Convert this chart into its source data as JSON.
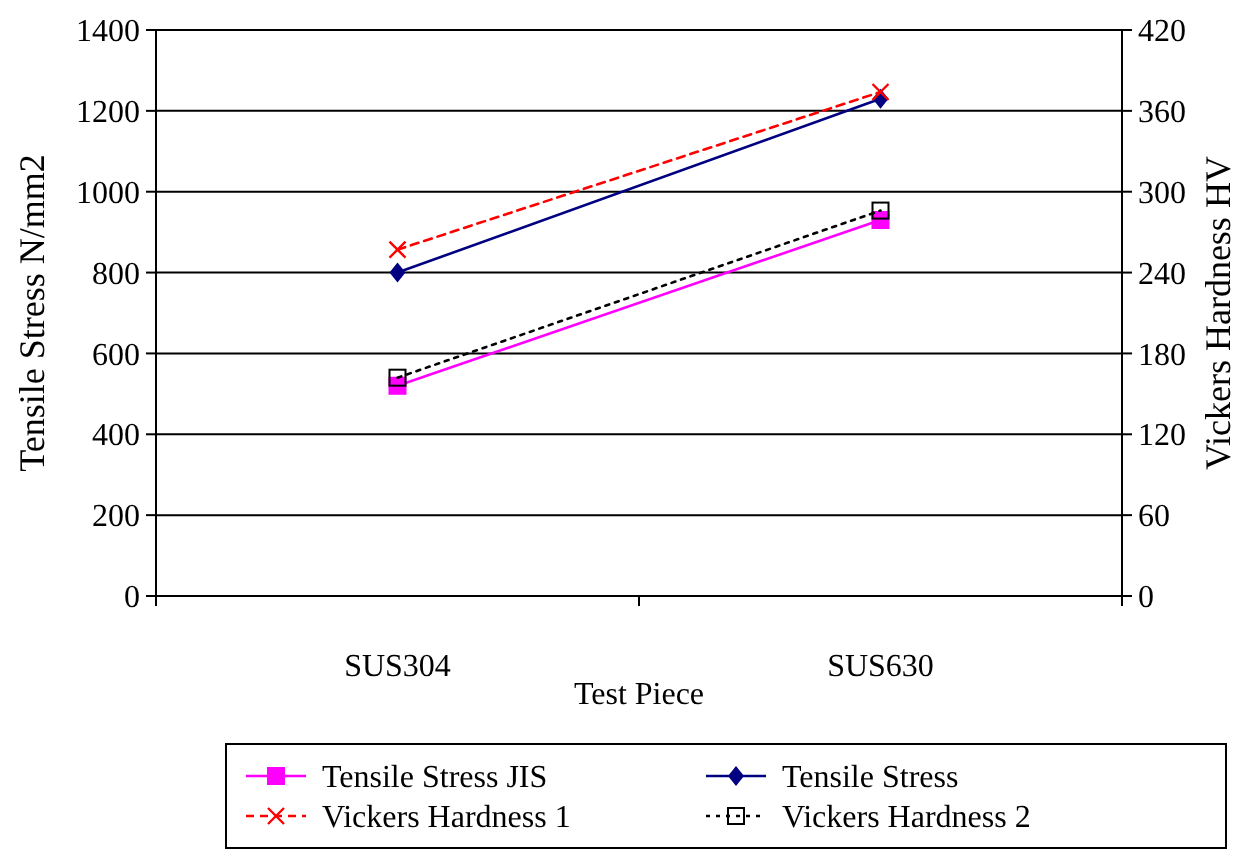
{
  "chart_data": {
    "type": "line",
    "xlabel": "Test Piece",
    "ylabel": "Tensile Stress N/mm2",
    "y2label": "Vickers Hardness HV",
    "categories": [
      "SUS304",
      "SUS630"
    ],
    "series": [
      {
        "name": "Tensile Stress JIS",
        "color": "#ff00ff",
        "values": [
          520,
          930
        ],
        "marker": "square",
        "line_style": "solid"
      },
      {
        "name": "Tensile Stress",
        "color": "#000080",
        "values": [
          800,
          1230
        ],
        "marker": "diamond",
        "line_style": "solid"
      },
      {
        "name": "Vickers Hardness 1",
        "color": "#ff0000",
        "values": [
          257,
          374
        ],
        "marker": "cross",
        "line_style": "dashed",
        "axis": "y2"
      },
      {
        "name": "Vickers Hardness 2",
        "color": "#000000",
        "values": [
          162,
          286
        ],
        "marker": "square",
        "line_style": "dotted",
        "axis": "y2"
      }
    ],
    "ylim": [
      0,
      1400
    ],
    "yticks": [
      0,
      200,
      400,
      600,
      800,
      1000,
      1200,
      1400
    ],
    "y2lim": [
      0,
      420
    ],
    "y2ticks": [
      0,
      60,
      120,
      180,
      240,
      300,
      360,
      420
    ],
    "grid": "y",
    "legend": "bottom"
  }
}
